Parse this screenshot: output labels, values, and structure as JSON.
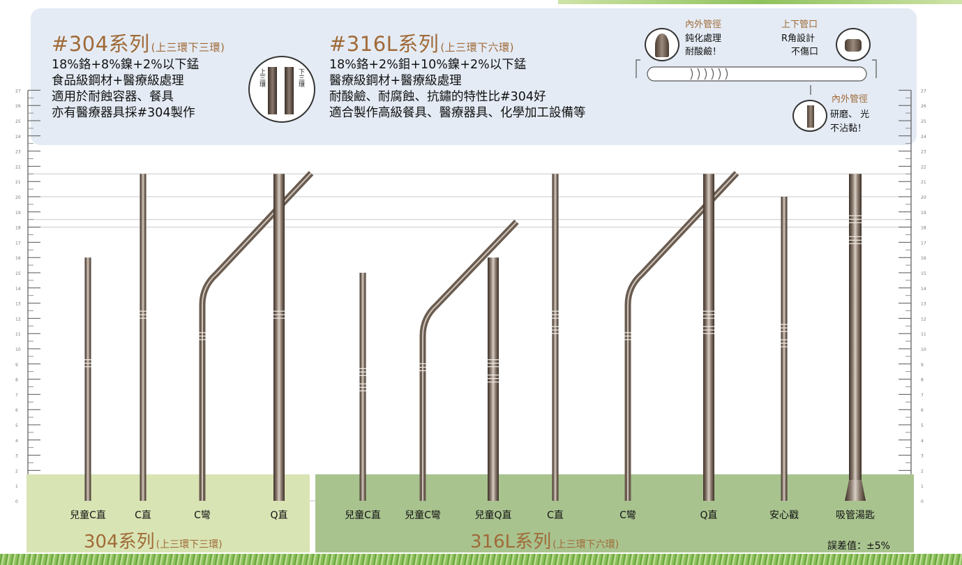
{
  "header": {
    "series304": {
      "title": "#304系列",
      "sub": "(上三環下三環)",
      "lines": [
        "18%鉻+8%鎳+2%以下錳",
        "食品級鋼材+醫療級處理",
        "適用於耐蝕容器、餐具",
        "亦有醫療器具採#304製作"
      ],
      "ring_top": "上三環",
      "ring_bottom": "下三環"
    },
    "series316": {
      "title": "#316L系列",
      "sub": "(上三環下六環)",
      "lines": [
        "18%鉻+2%鉬+10%鎳+2%以下錳",
        "醫療級鋼材+醫療級處理",
        "耐酸鹼、耐腐蝕、抗鏽的特性比#304好",
        "適合製作高級餐具、醫療器具、化學加工設備等"
      ],
      "ring_top": "上三環",
      "ring_bottom": "下六環"
    }
  },
  "features": {
    "inner_outer": {
      "title": "內外管徑",
      "line1": "鈍化處理",
      "line2": "耐酸鹼！"
    },
    "mouth": {
      "title": "上下管口",
      "line1": "R角設計",
      "line2": "不傷口"
    },
    "polish": {
      "title": "內外管徑",
      "line1": "研磨、  光",
      "line2": "不沾黏！"
    }
  },
  "ruler": {
    "min": 0,
    "max": 27
  },
  "straws": [
    {
      "label": "兒童C直",
      "group": "304",
      "shape": "straight",
      "top_cm": 16,
      "rings": 3
    },
    {
      "label": "C直",
      "group": "304",
      "shape": "straight",
      "top_cm": 21.5,
      "rings": 3
    },
    {
      "label": "C彎",
      "group": "304",
      "shape": "bent",
      "top_cm": 20.8,
      "rings": 3
    },
    {
      "label": "Q直",
      "group": "304",
      "shape": "straight-wide",
      "top_cm": 21.5,
      "rings": 3
    },
    {
      "label": "兒童C直",
      "group": "316L",
      "shape": "straight",
      "top_cm": 15,
      "rings": 6
    },
    {
      "label": "兒童C彎",
      "group": "316L",
      "shape": "bent",
      "top_cm": 17.5,
      "rings": 6
    },
    {
      "label": "兒童Q直",
      "group": "316L",
      "shape": "straight-wide",
      "top_cm": 16,
      "rings": 6
    },
    {
      "label": "C直",
      "group": "316L",
      "shape": "straight",
      "top_cm": 21.5,
      "rings": 6
    },
    {
      "label": "C彎",
      "group": "316L",
      "shape": "bent",
      "top_cm": 20.8,
      "rings": 6
    },
    {
      "label": "Q直",
      "group": "316L",
      "shape": "straight-wide",
      "top_cm": 21.5,
      "rings": 6
    },
    {
      "label": "安心戳",
      "group": "316L",
      "shape": "straight",
      "top_cm": 20,
      "rings": 6
    },
    {
      "label": "吸管湯匙",
      "group": "316L",
      "shape": "spoon",
      "top_cm": 21.5,
      "rings": 6
    }
  ],
  "footer": {
    "series304": {
      "title": "304系列",
      "sub": "(上三環下三環)"
    },
    "series316": {
      "title": "316L系列",
      "sub": "(上三環下六環)"
    },
    "tolerance": "誤差值：±5%"
  },
  "colors": {
    "header_bg": "#e4ebf4",
    "footer_304": "#d9e4b4",
    "footer_316": "#a9c38f",
    "accent": "#a06a38",
    "grass": "#6aa93a"
  }
}
